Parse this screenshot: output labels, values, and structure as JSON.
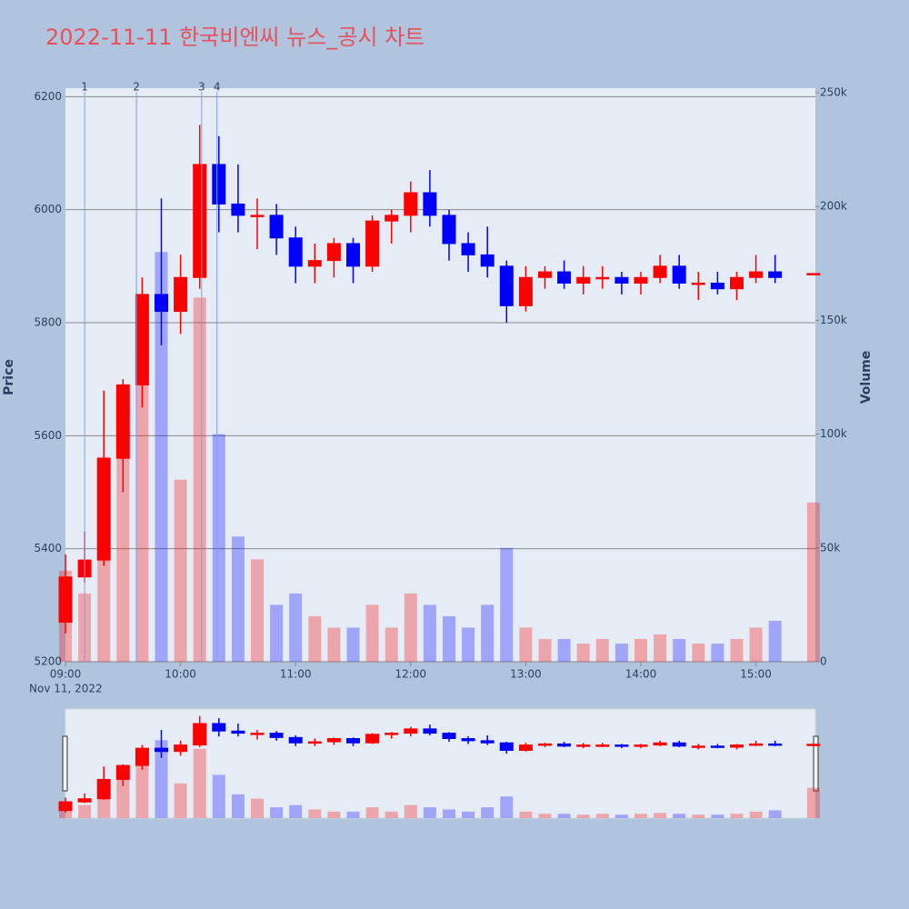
{
  "chart_data": {
    "type": "candlestick",
    "title": "2022-11-11 한국비엔씨 뉴스_공시 차트",
    "y_title": "Price",
    "y2_title": "Volume",
    "x_sublabel": "Nov 11, 2022",
    "increasing_color": "#ff0000",
    "decreasing_color": "#0000ff",
    "x": [
      "09:00",
      "09:10",
      "09:20",
      "09:30",
      "09:40",
      "09:50",
      "10:00",
      "10:10",
      "10:20",
      "10:30",
      "10:40",
      "10:50",
      "11:00",
      "11:10",
      "11:20",
      "11:30",
      "11:40",
      "11:50",
      "12:00",
      "12:10",
      "12:20",
      "12:30",
      "12:40",
      "12:50",
      "13:00",
      "13:10",
      "13:20",
      "13:30",
      "13:40",
      "13:50",
      "14:00",
      "14:10",
      "14:20",
      "14:30",
      "14:40",
      "14:50",
      "15:00",
      "15:10",
      "15:30"
    ],
    "open": [
      5270,
      5350,
      5380,
      5560,
      5690,
      5850,
      5820,
      5880,
      6080,
      6010,
      5990,
      5990,
      5950,
      5900,
      5910,
      5940,
      5900,
      5980,
      5990,
      6030,
      5990,
      5940,
      5920,
      5900,
      5830,
      5880,
      5890,
      5870,
      5880,
      5880,
      5870,
      5880,
      5900,
      5870,
      5870,
      5860,
      5880,
      5890,
      5887
    ],
    "high": [
      5390,
      5430,
      5680,
      5700,
      5880,
      6020,
      5920,
      6150,
      6130,
      6080,
      6020,
      6010,
      5970,
      5940,
      5950,
      5950,
      5990,
      6000,
      6050,
      6070,
      6000,
      5960,
      5970,
      5910,
      5900,
      5900,
      5910,
      5900,
      5900,
      5890,
      5890,
      5920,
      5920,
      5890,
      5890,
      5890,
      5920,
      5920,
      5887
    ],
    "low": [
      5250,
      5340,
      5370,
      5500,
      5650,
      5760,
      5780,
      5860,
      5960,
      5960,
      5930,
      5920,
      5870,
      5870,
      5880,
      5870,
      5890,
      5940,
      5960,
      5970,
      5910,
      5890,
      5880,
      5800,
      5820,
      5860,
      5860,
      5850,
      5860,
      5850,
      5850,
      5870,
      5860,
      5840,
      5850,
      5840,
      5870,
      5870,
      5887
    ],
    "close": [
      5350,
      5380,
      5560,
      5690,
      5850,
      5820,
      5880,
      6080,
      6010,
      5990,
      5990,
      5950,
      5900,
      5910,
      5940,
      5900,
      5980,
      5990,
      6030,
      5990,
      5940,
      5920,
      5900,
      5830,
      5880,
      5890,
      5870,
      5880,
      5880,
      5870,
      5880,
      5900,
      5870,
      5870,
      5860,
      5880,
      5890,
      5880,
      5887
    ],
    "volume": [
      40000,
      30000,
      90000,
      95000,
      150000,
      180000,
      80000,
      160000,
      100000,
      55000,
      45000,
      25000,
      30000,
      20000,
      15000,
      15000,
      25000,
      15000,
      30000,
      25000,
      20000,
      15000,
      25000,
      50000,
      15000,
      10000,
      10000,
      8000,
      10000,
      8000,
      10000,
      12000,
      10000,
      8000,
      8000,
      10000,
      15000,
      18000,
      70000
    ],
    "markers": [
      {
        "x": "09:10",
        "label": "1"
      },
      {
        "x": "09:37",
        "label": "2"
      },
      {
        "x": "10:11",
        "label": "3"
      },
      {
        "x": "10:19",
        "label": "4"
      }
    ],
    "xlim": [
      "09:00",
      "15:31"
    ],
    "xticks": [
      "09:00",
      "10:00",
      "11:00",
      "12:00",
      "13:00",
      "14:00",
      "15:00"
    ],
    "ylim": [
      5200,
      6215
    ],
    "yticks": [
      5200,
      5400,
      5600,
      5800,
      6000,
      6200
    ],
    "y2lim": [
      0,
      252000
    ],
    "y2ticks": [
      {
        "value": 0,
        "label": "0"
      },
      {
        "value": 50000,
        "label": "50k"
      },
      {
        "value": 100000,
        "label": "100k"
      },
      {
        "value": 150000,
        "label": "150k"
      },
      {
        "value": 200000,
        "label": "200k"
      },
      {
        "value": 250000,
        "label": "250k"
      }
    ],
    "grid": true,
    "rangeslider": true
  }
}
